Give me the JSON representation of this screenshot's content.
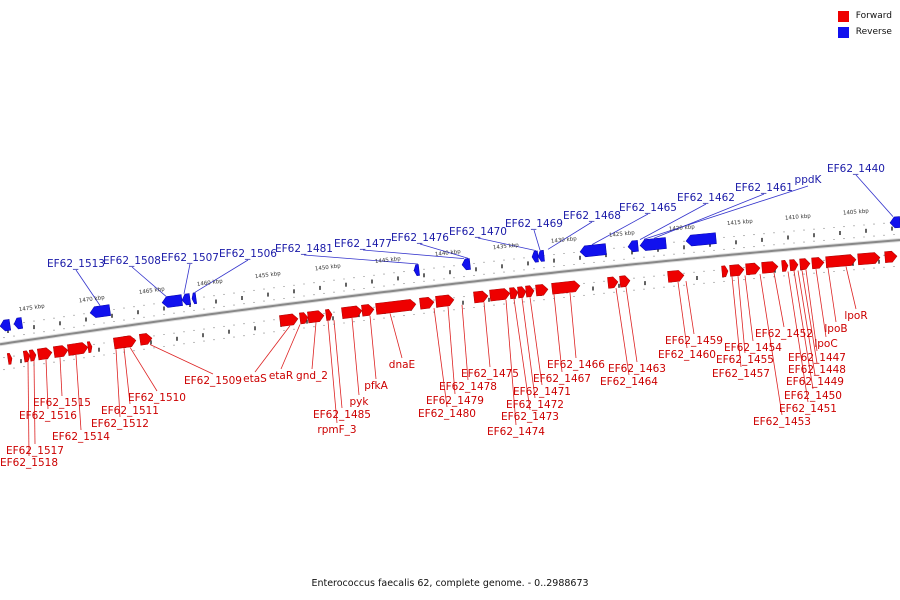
{
  "legend": [
    {
      "label": "Forward",
      "color": "#ee0000"
    },
    {
      "label": "Reverse",
      "color": "#1111ee"
    }
  ],
  "caption": "Enterococcus faecalis 62, complete genome. - 0..2988673",
  "colors": {
    "forward": "#ee0000",
    "reverse": "#1111ee",
    "forward_label": "#cc0000",
    "reverse_label": "#1a1aa8",
    "backbone": "#888888"
  },
  "scale_ticks": [
    "1405 kbp",
    "1410 kbp",
    "1415 kbp",
    "1420 kbp",
    "1425 kbp",
    "1430 kbp",
    "1435 kbp",
    "1440 kbp",
    "1445 kbp",
    "1450 kbp",
    "1455 kbp",
    "1460 kbp",
    "1465 kbp",
    "1470 kbp",
    "1475 kbp"
  ],
  "forward_genes": [
    "lpoR",
    "lpoB",
    "lpoC",
    "EF62_1447",
    "EF62_1448",
    "EF62_1449",
    "EF62_1450",
    "EF62_1451",
    "EF62_1452",
    "EF62_1453",
    "EF62_1454",
    "EF62_1455",
    "EF62_1457",
    "EF62_1459",
    "EF62_1460",
    "EF62_1463",
    "EF62_1464",
    "EF62_1466",
    "EF62_1467",
    "EF62_1471",
    "EF62_1472",
    "EF62_1473",
    "EF62_1474",
    "EF62_1475",
    "EF62_1478",
    "EF62_1479",
    "EF62_1480",
    "dnaE",
    "pfkA",
    "pyk",
    "EF62_1485",
    "rpmF_3",
    "gnd_2",
    "etaR",
    "etaS",
    "EF62_1509",
    "EF62_1510",
    "EF62_1511",
    "EF62_1512",
    "EF62_1514",
    "EF62_1515",
    "EF62_1516",
    "EF62_1517",
    "EF62_1518"
  ],
  "reverse_genes": [
    "EF62_1440",
    "ppdK",
    "EF62_1461",
    "EF62_1462",
    "EF62_1465",
    "EF62_1468",
    "EF62_1469",
    "EF62_1470",
    "EF62_1476",
    "EF62_1477",
    "EF62_1481",
    "EF62_1506",
    "EF62_1507",
    "EF62_1508",
    "EF62_1513"
  ]
}
